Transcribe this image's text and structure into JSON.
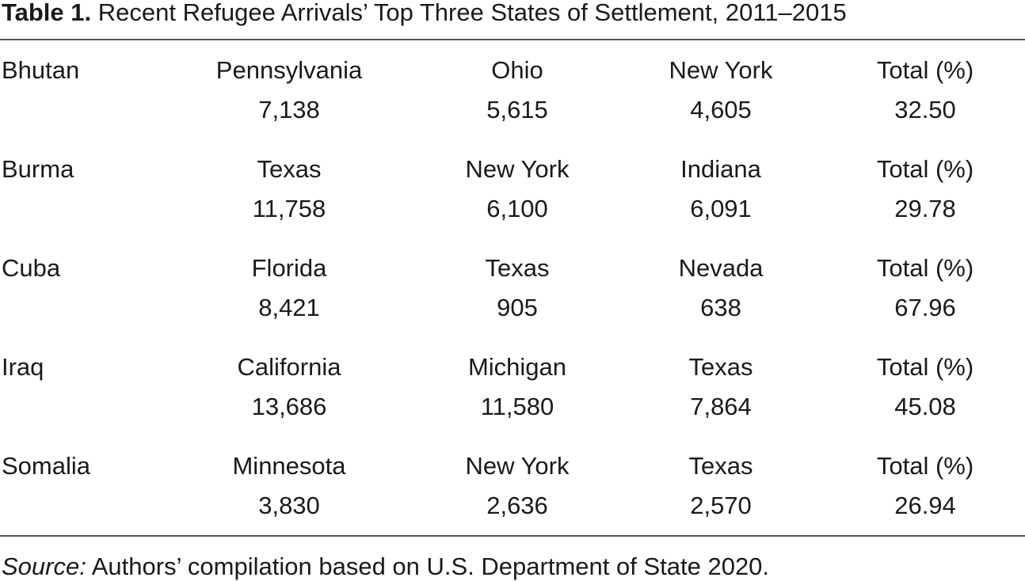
{
  "title": {
    "label": "Table 1.",
    "text": "Recent Refugee Arrivals’ Top Three States of Settlement, 2011–2015"
  },
  "rows": [
    {
      "country": "Bhutan",
      "cells": [
        {
          "state": "Pennsylvania",
          "count": "7,138"
        },
        {
          "state": "Ohio",
          "count": "5,615"
        },
        {
          "state": "New York",
          "count": "4,605"
        }
      ],
      "total_label": "Total (%)",
      "total": "32.50"
    },
    {
      "country": "Burma",
      "cells": [
        {
          "state": "Texas",
          "count": "11,758"
        },
        {
          "state": "New York",
          "count": "6,100"
        },
        {
          "state": "Indiana",
          "count": "6,091"
        }
      ],
      "total_label": "Total (%)",
      "total": "29.78"
    },
    {
      "country": "Cuba",
      "cells": [
        {
          "state": "Florida",
          "count": "8,421"
        },
        {
          "state": "Texas",
          "count": "905"
        },
        {
          "state": "Nevada",
          "count": "638"
        }
      ],
      "total_label": "Total (%)",
      "total": "67.96"
    },
    {
      "country": "Iraq",
      "cells": [
        {
          "state": "California",
          "count": "13,686"
        },
        {
          "state": "Michigan",
          "count": "11,580"
        },
        {
          "state": "Texas",
          "count": "7,864"
        }
      ],
      "total_label": "Total (%)",
      "total": "45.08"
    },
    {
      "country": "Somalia",
      "cells": [
        {
          "state": "Minnesota",
          "count": "3,830"
        },
        {
          "state": "New York",
          "count": "2,636"
        },
        {
          "state": "Texas",
          "count": "2,570"
        }
      ],
      "total_label": "Total (%)",
      "total": "26.94"
    }
  ],
  "source": {
    "label": "Source:",
    "text": "Authors’ compilation based on U.S. Department of State 2020."
  }
}
